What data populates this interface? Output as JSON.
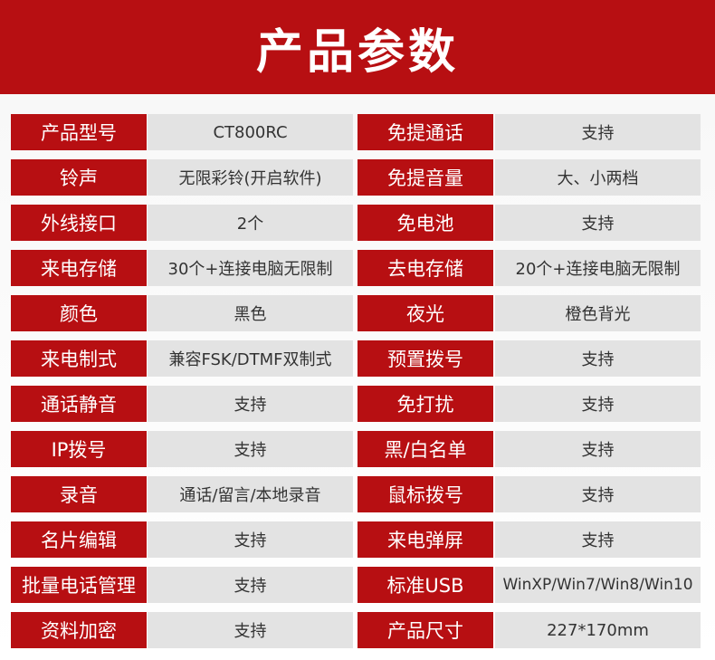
{
  "header": {
    "title": "产品参数"
  },
  "colors": {
    "accent": "#b70f12",
    "value_bg": "#e3e3e3"
  },
  "rows": [
    {
      "l1": "产品型号",
      "v1": "CT800RC",
      "l2": "免提通话",
      "v2": "支持"
    },
    {
      "l1": "铃声",
      "v1": "无限彩铃(开启软件)",
      "l2": "免提音量",
      "v2": "大、小两档"
    },
    {
      "l1": "外线接口",
      "v1": "2个",
      "l2": "免电池",
      "v2": "支持"
    },
    {
      "l1": "来电存储",
      "v1": "30个+连接电脑无限制",
      "l2": "去电存储",
      "v2": "20个+连接电脑无限制"
    },
    {
      "l1": "颜色",
      "v1": "黑色",
      "l2": "夜光",
      "v2": "橙色背光"
    },
    {
      "l1": "来电制式",
      "v1": "兼容FSK/DTMF双制式",
      "l2": "预置拨号",
      "v2": "支持"
    },
    {
      "l1": "通话静音",
      "v1": "支持",
      "l2": "免打扰",
      "v2": "支持"
    },
    {
      "l1": "IP拨号",
      "v1": "支持",
      "l2": "黑/白名单",
      "v2": "支持"
    },
    {
      "l1": "录音",
      "v1": "通话/留言/本地录音",
      "l2": "鼠标拨号",
      "v2": "支持"
    },
    {
      "l1": "名片编辑",
      "v1": "支持",
      "l2": "来电弹屏",
      "v2": "支持"
    },
    {
      "l1": "批量电话管理",
      "v1": "支持",
      "l2": "标准USB",
      "v2": "WinXP/Win7/Win8/Win10"
    },
    {
      "l1": "资料加密",
      "v1": "支持",
      "l2": "产品尺寸",
      "v2": "227*170mm"
    }
  ]
}
